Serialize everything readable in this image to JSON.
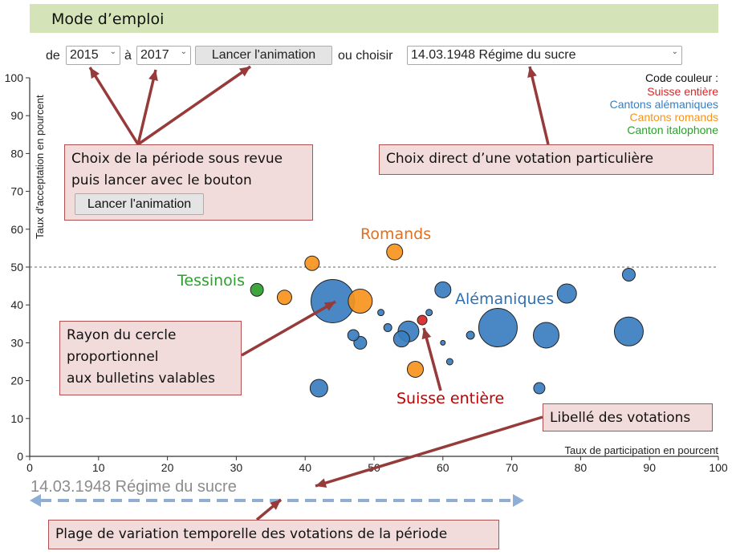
{
  "header": {
    "title": "Mode d’emploi"
  },
  "controls": {
    "de_label": "de",
    "from_year": "2015",
    "a_label": "à",
    "to_year": "2017",
    "launch_button": "Lancer l'animation",
    "ou_label": "ou choisir",
    "vote_select": "14.03.1948 Régime du sucre"
  },
  "legend": {
    "title": "Code couleur :",
    "items": [
      {
        "label": "Suisse entière",
        "color": "#d62728"
      },
      {
        "label": "Cantons alémaniques",
        "color": "#3a7ebf"
      },
      {
        "label": "Cantons romands",
        "color": "#f7941d"
      },
      {
        "label": "Canton italophone",
        "color": "#2ca02c"
      }
    ]
  },
  "callouts": {
    "period": {
      "line1": "Choix de la période sous revue",
      "line2": "puis lancer avec le bouton",
      "button": "Lancer l'animation"
    },
    "direct": {
      "text": "Choix direct d’une votation particulière"
    },
    "radius": {
      "line1": "Rayon du cercle",
      "line2": "proportionnel",
      "line3": "aux bulletins valables"
    },
    "libelle": {
      "text": "Libellé des votations"
    },
    "plage": {
      "text": "Plage de variation temporelle des votations de la période"
    }
  },
  "annotations": {
    "romands": "Romands",
    "tessinois": "Tessinois",
    "alemaniques": "Alémaniques",
    "suisse": "Suisse entière"
  },
  "vote_label": "14.03.1948 Régime du sucre",
  "colors": {
    "header_bg": "#d4e4b8",
    "callout_bg": "#f2dcdb",
    "arrow": "#963a3a",
    "timeline": "#8eaed6"
  },
  "chart_data": {
    "type": "scatter",
    "xlabel": "Taux de participation en pourcent",
    "ylabel": "Taux d'acceptation en pourcent",
    "xlim": [
      0,
      100
    ],
    "ylim": [
      0,
      100
    ],
    "xticks": [
      0,
      10,
      20,
      30,
      40,
      50,
      60,
      70,
      80,
      90,
      100
    ],
    "yticks": [
      0,
      10,
      20,
      30,
      40,
      50,
      60,
      70,
      80,
      90,
      100
    ],
    "reference_line_y": 50,
    "series": [
      {
        "name": "Suisse entière",
        "color": "#d62728",
        "points": [
          {
            "x": 57,
            "y": 36,
            "r": 6
          }
        ]
      },
      {
        "name": "Cantons alémaniques",
        "color": "#3a7ebf",
        "points": [
          {
            "x": 44,
            "y": 41,
            "r": 27
          },
          {
            "x": 68,
            "y": 34,
            "r": 24
          },
          {
            "x": 75,
            "y": 32,
            "r": 16
          },
          {
            "x": 87,
            "y": 33,
            "r": 18
          },
          {
            "x": 78,
            "y": 43,
            "r": 12
          },
          {
            "x": 60,
            "y": 44,
            "r": 10
          },
          {
            "x": 87,
            "y": 48,
            "r": 8
          },
          {
            "x": 55,
            "y": 33,
            "r": 13
          },
          {
            "x": 54,
            "y": 31,
            "r": 10
          },
          {
            "x": 42,
            "y": 18,
            "r": 11
          },
          {
            "x": 74,
            "y": 18,
            "r": 7
          },
          {
            "x": 47,
            "y": 32,
            "r": 7
          },
          {
            "x": 48,
            "y": 30,
            "r": 8
          },
          {
            "x": 52,
            "y": 34,
            "r": 5
          },
          {
            "x": 51,
            "y": 38,
            "r": 4
          },
          {
            "x": 58,
            "y": 38,
            "r": 4
          },
          {
            "x": 64,
            "y": 32,
            "r": 5
          },
          {
            "x": 60,
            "y": 30,
            "r": 3
          },
          {
            "x": 61,
            "y": 25,
            "r": 4
          }
        ]
      },
      {
        "name": "Cantons romands",
        "color": "#f7941d",
        "points": [
          {
            "x": 48,
            "y": 41,
            "r": 15
          },
          {
            "x": 53,
            "y": 54,
            "r": 10
          },
          {
            "x": 41,
            "y": 51,
            "r": 9
          },
          {
            "x": 37,
            "y": 42,
            "r": 9
          },
          {
            "x": 56,
            "y": 23,
            "r": 10
          }
        ]
      },
      {
        "name": "Canton italophone",
        "color": "#2ca02c",
        "points": [
          {
            "x": 33,
            "y": 44,
            "r": 8
          }
        ]
      }
    ]
  }
}
